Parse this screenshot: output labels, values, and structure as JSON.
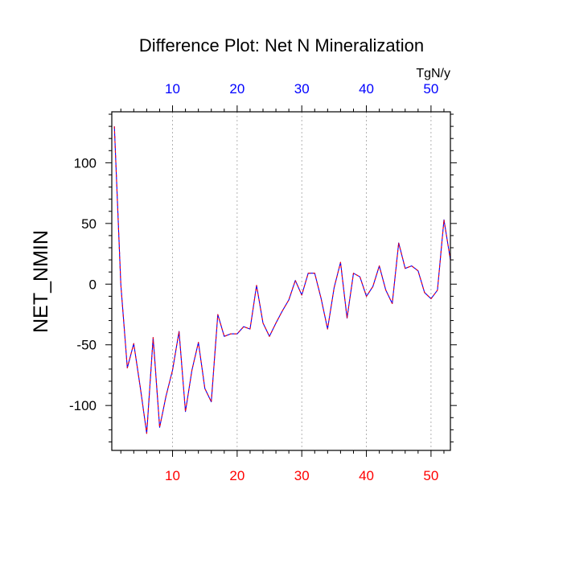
{
  "chart_data": {
    "type": "line",
    "title": "Difference Plot: Net N Mineralization",
    "ylabel": "NET_NMIN",
    "units_label": "TgN/y",
    "xlim": [
      0.6,
      53
    ],
    "ylim": [
      -137,
      142
    ],
    "bottom_ticks": [
      10,
      20,
      30,
      40,
      50
    ],
    "top_ticks": [
      10,
      20,
      30,
      40,
      50
    ],
    "y_ticks": [
      -100,
      -50,
      0,
      50,
      100
    ],
    "y_tick_labels": [
      "-100",
      "-50",
      "0",
      "50",
      "100"
    ],
    "x_minor_step": 2,
    "y_minor_step": 10,
    "x_gridlines": [
      10,
      20,
      30,
      40,
      50
    ],
    "colors": {
      "bottom_tick_labels": "#ff0000",
      "top_tick_labels": "#0000ff",
      "line_primary": "#0000ff",
      "line_dash": "#ff0000",
      "gridline": "#a0a0a0"
    },
    "series": [
      {
        "name": "NET_NMIN",
        "x": [
          1,
          2,
          3,
          4,
          5,
          6,
          7,
          8,
          9,
          10,
          11,
          12,
          13,
          14,
          15,
          16,
          17,
          18,
          19,
          20,
          21,
          22,
          23,
          24,
          25,
          26,
          27,
          28,
          29,
          30,
          31,
          32,
          33,
          34,
          35,
          36,
          37,
          38,
          39,
          40,
          41,
          42,
          43,
          44,
          45,
          46,
          47,
          48,
          49,
          50,
          51,
          52,
          53
        ],
        "values": [
          130,
          0,
          -69,
          -49,
          -85,
          -123,
          -44,
          -118,
          -92,
          -71,
          -39,
          -105,
          -71,
          -48,
          -86,
          -97,
          -25,
          -43,
          -41,
          -41,
          -35,
          -37,
          -1,
          -32,
          -43,
          -32,
          -22,
          -13,
          3,
          -9,
          9,
          9,
          -12,
          -37,
          -3,
          18,
          -28,
          9,
          6,
          -10,
          -2,
          15,
          -5,
          -16,
          34,
          13,
          15,
          11,
          -7,
          -12,
          -5,
          53,
          20
        ]
      }
    ]
  }
}
